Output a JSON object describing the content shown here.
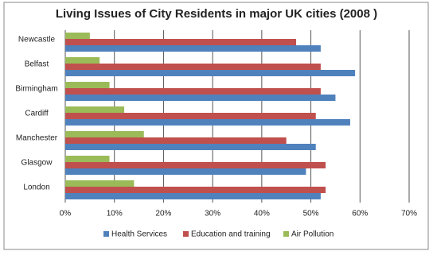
{
  "chart_data": {
    "type": "hbar",
    "title": "Living Issues of City Residents in major UK cities (2008 )",
    "categories": [
      "Newcastle",
      "Belfast",
      "Birmingham",
      "Cardiff",
      "Manchester",
      "Glasgow",
      "London"
    ],
    "series": [
      {
        "name": "Health Services",
        "color": "#4f81bd",
        "values": [
          52,
          59,
          55,
          58,
          51,
          49,
          52
        ]
      },
      {
        "name": "Education and training",
        "color": "#c0504d",
        "values": [
          47,
          52,
          52,
          51,
          45,
          53,
          53
        ]
      },
      {
        "name": "Air Pollution",
        "color": "#9bbb59",
        "values": [
          5,
          7,
          9,
          12,
          16,
          9,
          14
        ]
      }
    ],
    "xlim": [
      0,
      70
    ],
    "xticks": [
      {
        "value": 0,
        "label": "0%"
      },
      {
        "value": 10,
        "label": "10%"
      },
      {
        "value": 20,
        "label": "20%"
      },
      {
        "value": 30,
        "label": "30%"
      },
      {
        "value": 40,
        "label": "40%"
      },
      {
        "value": 50,
        "label": "50%"
      },
      {
        "value": 60,
        "label": "60%"
      },
      {
        "value": 70,
        "label": "70%"
      }
    ],
    "grid": true,
    "legend": "bottom"
  }
}
